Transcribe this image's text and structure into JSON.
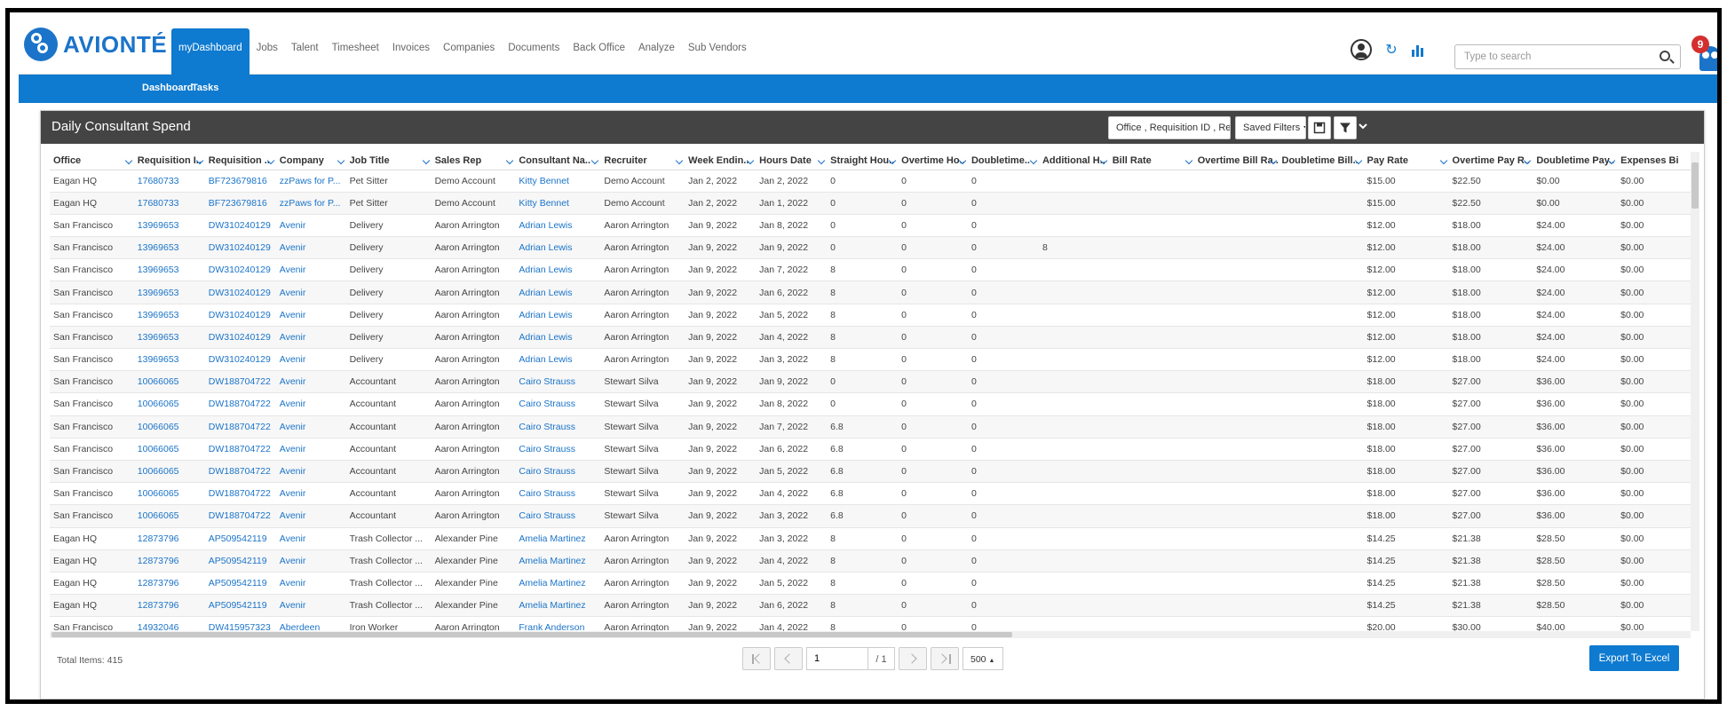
{
  "app": {
    "brand": "AVIONTÉ"
  },
  "nav": {
    "items": [
      "myDashboard",
      "Jobs",
      "Talent",
      "Timesheet",
      "Invoices",
      "Companies",
      "Documents",
      "Back Office",
      "Analyze",
      "Sub Vendors"
    ]
  },
  "subnav": {
    "items": [
      "Dashboard",
      "Tasks"
    ]
  },
  "topbar": {
    "search_placeholder": "Type to search",
    "notification_count": "9"
  },
  "panel": {
    "title": "Daily Consultant Spend",
    "filter_columns": "Office , Requisition ID , Requi",
    "saved_filters": "Saved Filters"
  },
  "table": {
    "columns": [
      "Office",
      "Requisition I..",
      "Requisition ..",
      "Company",
      "Job Title",
      "Sales Rep",
      "Consultant Na..",
      "Recruiter",
      "Week Endin..",
      "Hours Date",
      "Straight Hou..",
      "Overtime Ho..",
      "Doubletime..",
      "Additional H..",
      "Bill Rate",
      "Overtime Bill Ra..",
      "Doubletime Bill..",
      "Pay Rate",
      "Overtime Pay R..",
      "Doubletime Pay..",
      "Expenses Bi"
    ],
    "rows": [
      [
        "Eagan HQ",
        "17680733",
        "BF723679816",
        "zzPaws for P...",
        "Pet Sitter",
        "Demo Account",
        "Kitty Bennet",
        "Demo Account",
        "Jan 2, 2022",
        "Jan 2, 2022",
        "0",
        "0",
        "0",
        "",
        "",
        "",
        "",
        "$15.00",
        "$22.50",
        "$0.00",
        "$0.00"
      ],
      [
        "Eagan HQ",
        "17680733",
        "BF723679816",
        "zzPaws for P...",
        "Pet Sitter",
        "Demo Account",
        "Kitty Bennet",
        "Demo Account",
        "Jan 2, 2022",
        "Jan 1, 2022",
        "0",
        "0",
        "0",
        "",
        "",
        "",
        "",
        "$15.00",
        "$22.50",
        "$0.00",
        "$0.00"
      ],
      [
        "San Francisco",
        "13969653",
        "DW310240129",
        "Avenir",
        "Delivery",
        "Aaron Arrington",
        "Adrian Lewis",
        "Aaron Arrington",
        "Jan 9, 2022",
        "Jan 8, 2022",
        "0",
        "0",
        "0",
        "",
        "",
        "",
        "",
        "$12.00",
        "$18.00",
        "$24.00",
        "$0.00"
      ],
      [
        "San Francisco",
        "13969653",
        "DW310240129",
        "Avenir",
        "Delivery",
        "Aaron Arrington",
        "Adrian Lewis",
        "Aaron Arrington",
        "Jan 9, 2022",
        "Jan 9, 2022",
        "0",
        "0",
        "0",
        "8",
        "",
        "",
        "",
        "$12.00",
        "$18.00",
        "$24.00",
        "$0.00"
      ],
      [
        "San Francisco",
        "13969653",
        "DW310240129",
        "Avenir",
        "Delivery",
        "Aaron Arrington",
        "Adrian Lewis",
        "Aaron Arrington",
        "Jan 9, 2022",
        "Jan 7, 2022",
        "8",
        "0",
        "0",
        "",
        "",
        "",
        "",
        "$12.00",
        "$18.00",
        "$24.00",
        "$0.00"
      ],
      [
        "San Francisco",
        "13969653",
        "DW310240129",
        "Avenir",
        "Delivery",
        "Aaron Arrington",
        "Adrian Lewis",
        "Aaron Arrington",
        "Jan 9, 2022",
        "Jan 6, 2022",
        "8",
        "0",
        "0",
        "",
        "",
        "",
        "",
        "$12.00",
        "$18.00",
        "$24.00",
        "$0.00"
      ],
      [
        "San Francisco",
        "13969653",
        "DW310240129",
        "Avenir",
        "Delivery",
        "Aaron Arrington",
        "Adrian Lewis",
        "Aaron Arrington",
        "Jan 9, 2022",
        "Jan 5, 2022",
        "8",
        "0",
        "0",
        "",
        "",
        "",
        "",
        "$12.00",
        "$18.00",
        "$24.00",
        "$0.00"
      ],
      [
        "San Francisco",
        "13969653",
        "DW310240129",
        "Avenir",
        "Delivery",
        "Aaron Arrington",
        "Adrian Lewis",
        "Aaron Arrington",
        "Jan 9, 2022",
        "Jan 4, 2022",
        "8",
        "0",
        "0",
        "",
        "",
        "",
        "",
        "$12.00",
        "$18.00",
        "$24.00",
        "$0.00"
      ],
      [
        "San Francisco",
        "13969653",
        "DW310240129",
        "Avenir",
        "Delivery",
        "Aaron Arrington",
        "Adrian Lewis",
        "Aaron Arrington",
        "Jan 9, 2022",
        "Jan 3, 2022",
        "8",
        "0",
        "0",
        "",
        "",
        "",
        "",
        "$12.00",
        "$18.00",
        "$24.00",
        "$0.00"
      ],
      [
        "San Francisco",
        "10066065",
        "DW188704722",
        "Avenir",
        "Accountant",
        "Aaron Arrington",
        "Cairo Strauss",
        "Stewart Silva",
        "Jan 9, 2022",
        "Jan 9, 2022",
        "0",
        "0",
        "0",
        "",
        "",
        "",
        "",
        "$18.00",
        "$27.00",
        "$36.00",
        "$0.00"
      ],
      [
        "San Francisco",
        "10066065",
        "DW188704722",
        "Avenir",
        "Accountant",
        "Aaron Arrington",
        "Cairo Strauss",
        "Stewart Silva",
        "Jan 9, 2022",
        "Jan 8, 2022",
        "0",
        "0",
        "0",
        "",
        "",
        "",
        "",
        "$18.00",
        "$27.00",
        "$36.00",
        "$0.00"
      ],
      [
        "San Francisco",
        "10066065",
        "DW188704722",
        "Avenir",
        "Accountant",
        "Aaron Arrington",
        "Cairo Strauss",
        "Stewart Silva",
        "Jan 9, 2022",
        "Jan 7, 2022",
        "6.8",
        "0",
        "0",
        "",
        "",
        "",
        "",
        "$18.00",
        "$27.00",
        "$36.00",
        "$0.00"
      ],
      [
        "San Francisco",
        "10066065",
        "DW188704722",
        "Avenir",
        "Accountant",
        "Aaron Arrington",
        "Cairo Strauss",
        "Stewart Silva",
        "Jan 9, 2022",
        "Jan 6, 2022",
        "6.8",
        "0",
        "0",
        "",
        "",
        "",
        "",
        "$18.00",
        "$27.00",
        "$36.00",
        "$0.00"
      ],
      [
        "San Francisco",
        "10066065",
        "DW188704722",
        "Avenir",
        "Accountant",
        "Aaron Arrington",
        "Cairo Strauss",
        "Stewart Silva",
        "Jan 9, 2022",
        "Jan 5, 2022",
        "6.8",
        "0",
        "0",
        "",
        "",
        "",
        "",
        "$18.00",
        "$27.00",
        "$36.00",
        "$0.00"
      ],
      [
        "San Francisco",
        "10066065",
        "DW188704722",
        "Avenir",
        "Accountant",
        "Aaron Arrington",
        "Cairo Strauss",
        "Stewart Silva",
        "Jan 9, 2022",
        "Jan 4, 2022",
        "6.8",
        "0",
        "0",
        "",
        "",
        "",
        "",
        "$18.00",
        "$27.00",
        "$36.00",
        "$0.00"
      ],
      [
        "San Francisco",
        "10066065",
        "DW188704722",
        "Avenir",
        "Accountant",
        "Aaron Arrington",
        "Cairo Strauss",
        "Stewart Silva",
        "Jan 9, 2022",
        "Jan 3, 2022",
        "6.8",
        "0",
        "0",
        "",
        "",
        "",
        "",
        "$18.00",
        "$27.00",
        "$36.00",
        "$0.00"
      ],
      [
        "Eagan HQ",
        "12873796",
        "AP509542119",
        "Avenir",
        "Trash Collector ...",
        "Alexander Pine",
        "Amelia Martinez",
        "Aaron Arrington",
        "Jan 9, 2022",
        "Jan 3, 2022",
        "8",
        "0",
        "0",
        "",
        "",
        "",
        "",
        "$14.25",
        "$21.38",
        "$28.50",
        "$0.00"
      ],
      [
        "Eagan HQ",
        "12873796",
        "AP509542119",
        "Avenir",
        "Trash Collector ...",
        "Alexander Pine",
        "Amelia Martinez",
        "Aaron Arrington",
        "Jan 9, 2022",
        "Jan 4, 2022",
        "8",
        "0",
        "0",
        "",
        "",
        "",
        "",
        "$14.25",
        "$21.38",
        "$28.50",
        "$0.00"
      ],
      [
        "Eagan HQ",
        "12873796",
        "AP509542119",
        "Avenir",
        "Trash Collector ...",
        "Alexander Pine",
        "Amelia Martinez",
        "Aaron Arrington",
        "Jan 9, 2022",
        "Jan 5, 2022",
        "8",
        "0",
        "0",
        "",
        "",
        "",
        "",
        "$14.25",
        "$21.38",
        "$28.50",
        "$0.00"
      ],
      [
        "Eagan HQ",
        "12873796",
        "AP509542119",
        "Avenir",
        "Trash Collector ...",
        "Alexander Pine",
        "Amelia Martinez",
        "Aaron Arrington",
        "Jan 9, 2022",
        "Jan 6, 2022",
        "8",
        "0",
        "0",
        "",
        "",
        "",
        "",
        "$14.25",
        "$21.38",
        "$28.50",
        "$0.00"
      ],
      [
        "San Francisco",
        "14932046",
        "DW415957323",
        "Aberdeen",
        "Iron Worker",
        "Aaron Arrington",
        "Frank Anderson",
        "Aaron Arrington",
        "Jan 9, 2022",
        "Jan 4, 2022",
        "8",
        "0",
        "0",
        "",
        "",
        "",
        "",
        "$20.00",
        "$30.00",
        "$40.00",
        "$0.00"
      ]
    ]
  },
  "footer": {
    "total_items": "Total Items: 415",
    "page": "1",
    "page_of": "/ 1",
    "page_size": "500",
    "export_label": "Export To Excel"
  },
  "colors": {
    "accent": "#0e7ad0",
    "link": "#1b74c9",
    "header_bg": "#444444",
    "badge": "#d32f2f"
  }
}
